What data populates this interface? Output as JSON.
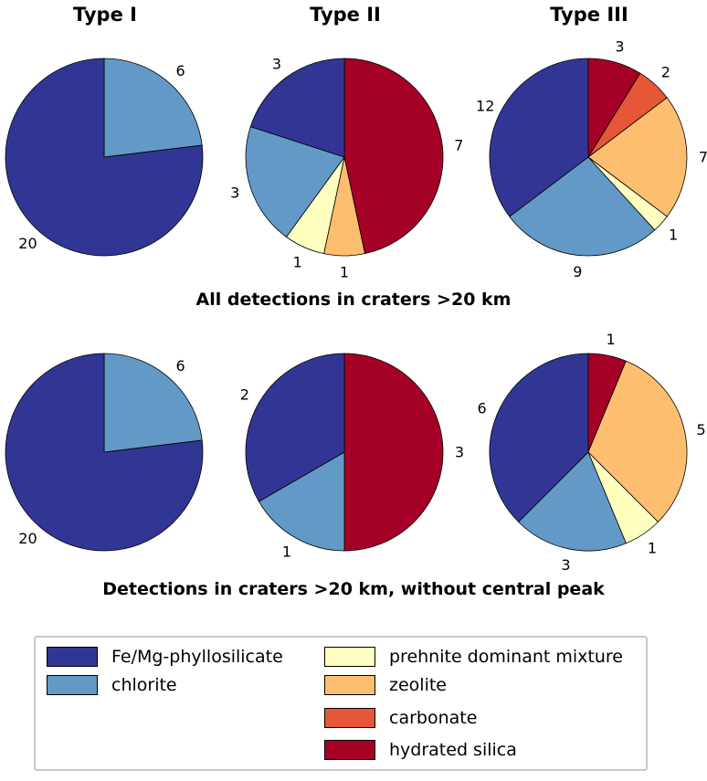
{
  "column_titles": [
    "Type I",
    "Type II",
    "Type III"
  ],
  "row_titles": [
    "All detections in craters >20 km",
    "Detections in craters >20 km, without central peak"
  ],
  "colors": {
    "Fe/Mg-phyllosilicate": "#313695",
    "chlorite": "#6399c6",
    "prehnite dominant mixture": "#ffffbf",
    "zeolite": "#fdbe70",
    "carbonate": "#e55737",
    "hydrated silica": "#a50026"
  },
  "legend": [
    {
      "label": "Fe/Mg-phyllosilicate",
      "color": "#313695"
    },
    {
      "label": "chlorite",
      "color": "#6399c6"
    },
    {
      "label": "prehnite dominant mixture",
      "color": "#ffffbf"
    },
    {
      "label": "zeolite",
      "color": "#fdbe70"
    },
    {
      "label": "carbonate",
      "color": "#e55737"
    },
    {
      "label": "hydrated silica",
      "color": "#a50026"
    }
  ],
  "chart_data": [
    {
      "type": "pie",
      "title": "Type I",
      "group": "All detections in craters >20 km",
      "slices": [
        {
          "label": "chlorite",
          "value": 6
        },
        {
          "label": "Fe/Mg-phyllosilicate",
          "value": 20
        }
      ]
    },
    {
      "type": "pie",
      "title": "Type II",
      "group": "All detections in craters >20 km",
      "slices": [
        {
          "label": "hydrated silica",
          "value": 7
        },
        {
          "label": "zeolite",
          "value": 1
        },
        {
          "label": "prehnite dominant mixture",
          "value": 1
        },
        {
          "label": "chlorite",
          "value": 3
        },
        {
          "label": "Fe/Mg-phyllosilicate",
          "value": 3
        }
      ]
    },
    {
      "type": "pie",
      "title": "Type III",
      "group": "All detections in craters >20 km",
      "slices": [
        {
          "label": "hydrated silica",
          "value": 3
        },
        {
          "label": "carbonate",
          "value": 2
        },
        {
          "label": "zeolite",
          "value": 7
        },
        {
          "label": "prehnite dominant mixture",
          "value": 1
        },
        {
          "label": "chlorite",
          "value": 9
        },
        {
          "label": "Fe/Mg-phyllosilicate",
          "value": 12
        }
      ]
    },
    {
      "type": "pie",
      "title": "Type I",
      "group": "Detections in craters >20 km, without central peak",
      "slices": [
        {
          "label": "chlorite",
          "value": 6
        },
        {
          "label": "Fe/Mg-phyllosilicate",
          "value": 20
        }
      ]
    },
    {
      "type": "pie",
      "title": "Type II",
      "group": "Detections in craters >20 km, without central peak",
      "slices": [
        {
          "label": "hydrated silica",
          "value": 3
        },
        {
          "label": "chlorite",
          "value": 1
        },
        {
          "label": "Fe/Mg-phyllosilicate",
          "value": 2
        }
      ]
    },
    {
      "type": "pie",
      "title": "Type III",
      "group": "Detections in craters >20 km, without central peak",
      "slices": [
        {
          "label": "hydrated silica",
          "value": 1
        },
        {
          "label": "zeolite",
          "value": 5
        },
        {
          "label": "prehnite dominant mixture",
          "value": 1
        },
        {
          "label": "chlorite",
          "value": 3
        },
        {
          "label": "Fe/Mg-phyllosilicate",
          "value": 6
        }
      ]
    }
  ]
}
